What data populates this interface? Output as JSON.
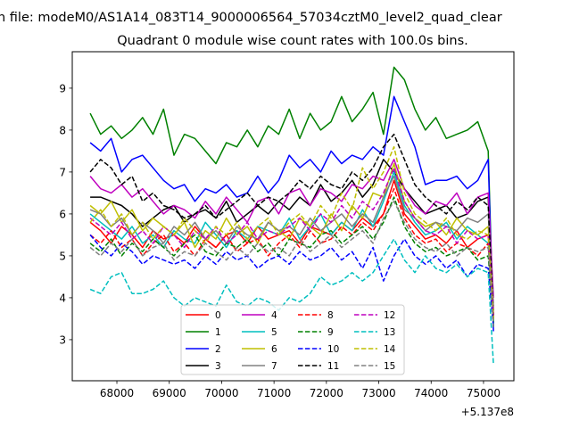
{
  "chart_data": {
    "type": "line",
    "suptitle": "n file: modeM0/AS1A14_083T14_9000006564_57034cztM0_level2_quad_clear",
    "title": "Quadrant 0 module wise count rates with 100.0s bins.",
    "xlabel": "",
    "ylabel": "",
    "x_offset_label": "+5.137e8",
    "xlim": [
      67148,
      75580
    ],
    "ylim": [
      2.02,
      9.87
    ],
    "xticks": [
      "68000",
      "69000",
      "70000",
      "71000",
      "72000",
      "73000",
      "74000",
      "75000"
    ],
    "yticks": [
      "3",
      "4",
      "5",
      "6",
      "7",
      "8",
      "9"
    ],
    "legend_position": "lower-center",
    "grid": false,
    "x": [
      67490,
      67690,
      67890,
      68090,
      68290,
      68490,
      68690,
      68890,
      69090,
      69290,
      69490,
      69690,
      69890,
      70090,
      70290,
      70490,
      70690,
      70890,
      71090,
      71290,
      71490,
      71690,
      71890,
      72090,
      72290,
      72490,
      72690,
      72890,
      73090,
      73290,
      73490,
      73690,
      73890,
      74090,
      74290,
      74490,
      74690,
      74890,
      75090,
      75190
    ],
    "series": [
      {
        "name": "0",
        "color": "#ff0000",
        "dash": false,
        "values": [
          5.8,
          5.6,
          5.3,
          5.7,
          5.5,
          5.2,
          5.6,
          5.4,
          5.5,
          5.3,
          5.7,
          5.4,
          5.2,
          5.5,
          5.6,
          5.3,
          5.7,
          5.4,
          5.5,
          5.6,
          5.3,
          5.7,
          5.6,
          5.5,
          5.8,
          5.6,
          5.9,
          5.7,
          6.0,
          6.8,
          6.0,
          5.7,
          5.4,
          5.5,
          5.3,
          5.6,
          5.2,
          5.4,
          5.5,
          3.6
        ]
      },
      {
        "name": "1",
        "color": "#008000",
        "dash": false,
        "values": [
          8.4,
          7.9,
          8.1,
          7.8,
          8.0,
          8.3,
          7.9,
          8.5,
          7.4,
          7.9,
          7.8,
          7.5,
          7.2,
          7.7,
          7.6,
          8.0,
          7.6,
          8.1,
          7.9,
          8.5,
          7.8,
          8.4,
          8.0,
          8.2,
          8.8,
          8.2,
          8.5,
          8.9,
          7.9,
          9.5,
          9.2,
          8.5,
          8.0,
          8.3,
          7.8,
          7.9,
          8.0,
          8.2,
          7.5,
          3.3
        ]
      },
      {
        "name": "2",
        "color": "#0000ff",
        "dash": false,
        "values": [
          7.7,
          7.5,
          7.8,
          7.0,
          7.3,
          7.4,
          7.1,
          6.8,
          6.6,
          6.7,
          6.3,
          6.6,
          6.5,
          6.7,
          6.4,
          6.5,
          6.9,
          6.5,
          6.8,
          7.4,
          7.1,
          7.3,
          7.0,
          7.5,
          7.2,
          7.4,
          7.3,
          7.6,
          7.4,
          8.8,
          8.2,
          7.6,
          6.7,
          6.8,
          6.8,
          6.9,
          6.6,
          6.8,
          7.3,
          3.2
        ]
      },
      {
        "name": "3",
        "color": "#000000",
        "dash": false,
        "values": [
          6.4,
          6.4,
          6.3,
          6.2,
          6.0,
          5.7,
          5.9,
          6.1,
          6.2,
          5.8,
          6.0,
          6.1,
          5.9,
          6.3,
          5.8,
          6.0,
          6.2,
          6.0,
          6.3,
          6.1,
          6.4,
          6.2,
          6.7,
          6.3,
          6.5,
          6.8,
          6.4,
          6.7,
          7.3,
          7.0,
          6.6,
          6.3,
          6.0,
          6.1,
          6.2,
          5.9,
          6.0,
          6.3,
          6.4,
          3.5
        ]
      },
      {
        "name": "4",
        "color": "#bf00bf",
        "dash": false,
        "values": [
          6.9,
          6.6,
          6.5,
          6.7,
          6.4,
          6.6,
          6.3,
          6.0,
          6.2,
          6.1,
          5.9,
          6.3,
          6.0,
          6.4,
          6.1,
          5.8,
          6.3,
          6.4,
          6.0,
          6.5,
          6.6,
          6.2,
          6.6,
          6.5,
          6.3,
          6.7,
          6.6,
          6.9,
          6.8,
          7.3,
          6.6,
          6.2,
          6.0,
          6.3,
          6.2,
          6.5,
          6.0,
          6.4,
          6.5,
          4.0
        ]
      },
      {
        "name": "5",
        "color": "#00bfbf",
        "dash": false,
        "values": [
          6.0,
          5.8,
          5.6,
          5.4,
          5.7,
          5.3,
          5.5,
          5.2,
          5.6,
          5.4,
          5.3,
          5.8,
          5.5,
          5.2,
          5.6,
          5.4,
          5.7,
          5.6,
          5.5,
          5.9,
          5.4,
          5.7,
          6.0,
          5.5,
          5.8,
          5.6,
          6.1,
          5.7,
          6.3,
          7.0,
          6.2,
          5.8,
          5.5,
          5.6,
          5.8,
          5.4,
          5.7,
          5.5,
          5.3,
          3.4
        ]
      },
      {
        "name": "6",
        "color": "#bfbf00",
        "dash": false,
        "values": [
          6.2,
          6.0,
          6.3,
          5.8,
          6.1,
          5.6,
          5.9,
          5.7,
          5.5,
          5.8,
          5.2,
          5.6,
          5.4,
          5.9,
          5.5,
          5.7,
          5.3,
          5.8,
          5.6,
          5.4,
          5.9,
          5.7,
          5.5,
          6.0,
          5.6,
          6.2,
          5.9,
          6.5,
          6.4,
          7.2,
          6.3,
          5.9,
          5.7,
          5.8,
          5.5,
          5.9,
          5.6,
          5.5,
          5.7,
          3.7
        ]
      },
      {
        "name": "7",
        "color": "#808080",
        "dash": false,
        "values": [
          6.1,
          6.0,
          5.7,
          5.9,
          5.5,
          5.8,
          5.6,
          5.3,
          5.7,
          5.5,
          5.8,
          5.4,
          5.6,
          5.3,
          5.7,
          5.5,
          5.4,
          5.8,
          5.6,
          5.7,
          5.5,
          5.9,
          5.6,
          5.8,
          6.0,
          5.7,
          6.0,
          5.8,
          6.4,
          6.9,
          6.1,
          5.9,
          5.6,
          5.8,
          5.7,
          5.6,
          5.9,
          5.8,
          6.0,
          3.8
        ]
      },
      {
        "name": "8",
        "color": "#ff0000",
        "dash": true,
        "values": [
          5.5,
          5.3,
          5.6,
          5.2,
          5.4,
          5.0,
          5.3,
          5.5,
          5.1,
          5.3,
          5.0,
          5.4,
          5.2,
          5.5,
          5.1,
          5.3,
          5.4,
          5.0,
          5.3,
          5.5,
          5.2,
          5.6,
          5.3,
          5.4,
          5.7,
          5.5,
          5.8,
          5.6,
          6.0,
          6.6,
          5.9,
          5.5,
          5.3,
          5.4,
          5.1,
          5.3,
          5.2,
          5.0,
          5.3,
          3.5
        ]
      },
      {
        "name": "9",
        "color": "#008000",
        "dash": true,
        "values": [
          5.3,
          5.1,
          5.4,
          5.0,
          5.3,
          5.1,
          5.4,
          5.2,
          5.0,
          5.3,
          5.5,
          5.1,
          5.0,
          5.3,
          5.2,
          5.4,
          5.1,
          5.3,
          5.0,
          5.4,
          5.3,
          5.2,
          5.5,
          5.6,
          5.3,
          5.5,
          5.7,
          5.4,
          5.8,
          6.4,
          5.7,
          5.3,
          5.1,
          5.2,
          5.0,
          5.1,
          5.2,
          4.9,
          5.0,
          3.4
        ]
      },
      {
        "name": "10",
        "color": "#0000ff",
        "dash": true,
        "values": [
          5.5,
          5.2,
          5.0,
          5.3,
          5.1,
          4.8,
          5.0,
          4.9,
          4.8,
          4.9,
          4.7,
          5.0,
          4.8,
          5.1,
          4.9,
          5.0,
          4.7,
          4.9,
          5.0,
          4.8,
          5.1,
          4.9,
          5.0,
          5.2,
          4.9,
          5.1,
          4.7,
          5.2,
          4.4,
          5.0,
          5.4,
          5.0,
          4.8,
          5.0,
          4.7,
          4.9,
          4.5,
          4.8,
          4.7,
          3.3
        ]
      },
      {
        "name": "11",
        "color": "#000000",
        "dash": true,
        "values": [
          7.0,
          7.3,
          7.1,
          6.7,
          6.9,
          6.3,
          6.5,
          6.2,
          6.1,
          5.9,
          6.0,
          6.2,
          5.9,
          6.1,
          6.3,
          6.5,
          6.2,
          6.4,
          6.3,
          6.5,
          6.8,
          6.6,
          6.9,
          6.7,
          6.6,
          7.0,
          6.8,
          7.1,
          7.6,
          7.9,
          7.3,
          6.7,
          6.4,
          6.2,
          6.0,
          6.3,
          6.1,
          6.4,
          6.2,
          3.6
        ]
      },
      {
        "name": "12",
        "color": "#bf00bf",
        "dash": true,
        "values": [
          5.9,
          5.7,
          5.5,
          5.8,
          5.4,
          5.6,
          5.3,
          5.7,
          5.5,
          5.2,
          5.6,
          5.4,
          5.7,
          5.3,
          5.5,
          5.8,
          5.4,
          5.6,
          5.5,
          5.7,
          5.9,
          5.6,
          6.0,
          5.8,
          6.2,
          5.9,
          6.3,
          6.1,
          6.5,
          7.1,
          6.3,
          5.9,
          5.6,
          5.5,
          5.7,
          5.3,
          5.6,
          5.4,
          5.5,
          3.6
        ]
      },
      {
        "name": "13",
        "color": "#00bfbf",
        "dash": true,
        "values": [
          4.2,
          4.1,
          4.5,
          4.6,
          4.1,
          4.1,
          4.2,
          4.4,
          4.0,
          3.8,
          4.0,
          3.9,
          3.8,
          4.3,
          3.9,
          3.8,
          4.0,
          3.9,
          3.7,
          4.0,
          3.9,
          4.1,
          4.5,
          4.3,
          4.4,
          4.6,
          4.4,
          4.6,
          5.0,
          5.4,
          4.9,
          4.6,
          5.0,
          4.7,
          4.6,
          4.8,
          4.5,
          4.7,
          4.6,
          2.4
        ]
      },
      {
        "name": "14",
        "color": "#bfbf00",
        "dash": true,
        "values": [
          5.8,
          6.1,
          5.7,
          6.0,
          5.5,
          5.8,
          5.4,
          5.7,
          5.5,
          5.9,
          5.6,
          5.3,
          5.7,
          5.5,
          5.8,
          5.4,
          5.7,
          5.9,
          5.5,
          5.8,
          6.0,
          5.7,
          6.2,
          5.9,
          6.5,
          6.1,
          7.1,
          6.6,
          7.0,
          7.6,
          6.5,
          6.0,
          5.8,
          5.6,
          5.9,
          5.5,
          5.4,
          5.6,
          5.5,
          3.5
        ]
      },
      {
        "name": "15",
        "color": "#808080",
        "dash": true,
        "values": [
          5.2,
          5.0,
          5.3,
          5.1,
          5.4,
          5.0,
          5.2,
          5.3,
          4.9,
          5.1,
          5.0,
          5.3,
          5.1,
          4.9,
          5.2,
          5.0,
          5.3,
          5.1,
          5.2,
          5.0,
          5.4,
          5.1,
          5.3,
          5.5,
          5.2,
          5.4,
          5.6,
          5.3,
          5.9,
          6.3,
          5.8,
          5.4,
          5.2,
          5.1,
          5.3,
          5.0,
          5.2,
          5.1,
          5.2,
          3.3
        ]
      }
    ]
  }
}
